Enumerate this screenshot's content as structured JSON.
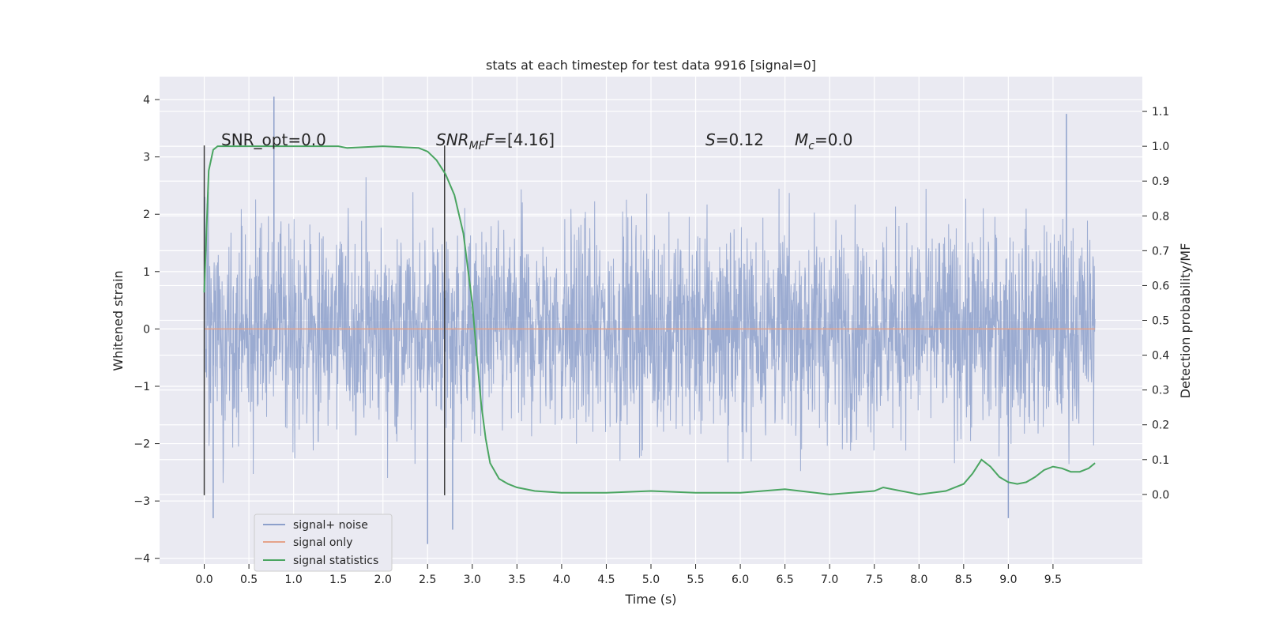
{
  "chart_data": {
    "type": "line",
    "title": "stats at each timestep for test data 9916 [signal=0]",
    "xlabel": "Time (s)",
    "ylabel": "Whitened strain",
    "ylabel_right": "Detection probability/MF",
    "xlim": [
      -0.5,
      10.5
    ],
    "ylim": [
      -4.1,
      4.4
    ],
    "ylim_right": [
      -0.2,
      1.2
    ],
    "x_ticks": [
      "0.0",
      "0.5",
      "1.0",
      "1.5",
      "2.0",
      "2.5",
      "3.0",
      "3.5",
      "4.0",
      "4.5",
      "5.0",
      "5.5",
      "6.0",
      "6.5",
      "7.0",
      "7.5",
      "8.0",
      "8.5",
      "9.0",
      "9.5"
    ],
    "y_ticks": [
      "4",
      "3",
      "2",
      "1",
      "0",
      "−1",
      "−2",
      "−3",
      "−4"
    ],
    "y_right_ticks": [
      "1.1",
      "1.0",
      "0.9",
      "0.8",
      "0.7",
      "0.6",
      "0.5",
      "0.4",
      "0.3",
      "0.2",
      "0.1",
      "0.0"
    ],
    "grid": true,
    "legend_position": "lower-left",
    "colors": {
      "noise": "#8da0cb",
      "signal": "#e5a38a",
      "stats": "#4aa561",
      "background": "#eaeaf2",
      "vline": "#3c3c3c"
    },
    "annotations": {
      "snr_opt": "SNR_opt=0.0",
      "snr_mf_main": "SNR",
      "snr_mf_sub": "MF",
      "snr_mf_value": "=[4.16]",
      "s_main": "S",
      "s_value": "=0.12",
      "mc_main": "M",
      "mc_sub": "c",
      "mc_value": "=0.0"
    },
    "vertical_lines": [
      {
        "x": 0.0,
        "y_range": [
          -2.9,
          3.2
        ]
      },
      {
        "x": 2.69,
        "y_range": [
          -2.9,
          3.2
        ]
      }
    ],
    "series": [
      {
        "name": "signal+ noise",
        "description_values": "noise trace, approx. uniform amplitude between -2.9 and 2.9 with peaks up to 4.05 at x=0.78 and down to -3.75 at x=2.5",
        "x_range": [
          0.0,
          9.97
        ],
        "peaks": [
          [
            0.78,
            4.05
          ],
          [
            2.5,
            -3.75
          ],
          [
            0.1,
            -3.3
          ],
          [
            2.78,
            -3.5
          ],
          [
            9.0,
            -3.3
          ],
          [
            9.65,
            3.75
          ]
        ]
      },
      {
        "name": "signal only",
        "x": [
          0.0,
          9.97
        ],
        "y": [
          0.0,
          0.0
        ]
      },
      {
        "name": "signal statistics",
        "axis": "right",
        "x": [
          0.0,
          0.05,
          0.1,
          0.15,
          0.2,
          0.3,
          0.5,
          1.0,
          1.5,
          1.6,
          2.0,
          2.4,
          2.5,
          2.6,
          2.7,
          2.8,
          2.9,
          3.0,
          3.05,
          3.1,
          3.15,
          3.2,
          3.3,
          3.4,
          3.5,
          3.7,
          4.0,
          4.5,
          5.0,
          5.5,
          6.0,
          6.5,
          7.0,
          7.5,
          7.6,
          8.0,
          8.3,
          8.5,
          8.6,
          8.7,
          8.8,
          8.9,
          9.0,
          9.1,
          9.2,
          9.3,
          9.4,
          9.5,
          9.6,
          9.7,
          9.8,
          9.9,
          9.97
        ],
        "y": [
          0.58,
          0.93,
          0.99,
          1.0,
          1.0,
          1.0,
          1.0,
          1.0,
          1.0,
          0.995,
          1.0,
          0.995,
          0.985,
          0.96,
          0.92,
          0.86,
          0.75,
          0.55,
          0.4,
          0.26,
          0.16,
          0.09,
          0.045,
          0.03,
          0.02,
          0.01,
          0.005,
          0.005,
          0.01,
          0.005,
          0.005,
          0.015,
          0.0,
          0.01,
          0.02,
          0.0,
          0.01,
          0.03,
          0.06,
          0.1,
          0.08,
          0.05,
          0.035,
          0.03,
          0.035,
          0.05,
          0.07,
          0.08,
          0.075,
          0.065,
          0.065,
          0.075,
          0.09
        ]
      }
    ]
  }
}
